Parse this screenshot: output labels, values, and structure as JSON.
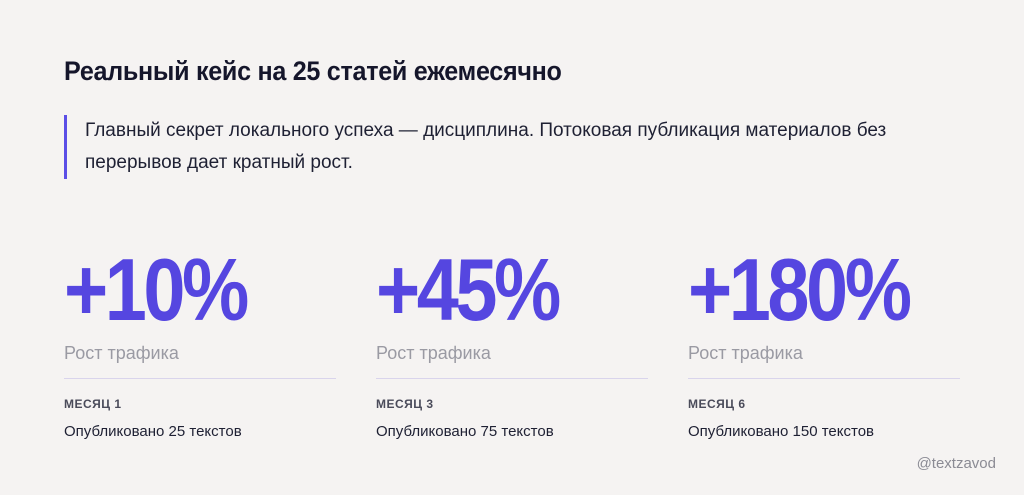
{
  "title": "Реальный кейс на 25 статей ежемесячно",
  "quote": {
    "line1": "Главный секрет локального успеха — дисциплина. Потоковая публикация материалов без",
    "line2": "перерывов дает кратный рост."
  },
  "stats": [
    {
      "value": "+10%",
      "label": "Рост трафика",
      "month": "МЕСЯЦ 1",
      "published": "Опубликовано 25 текстов"
    },
    {
      "value": "+45%",
      "label": "Рост трафика",
      "month": "МЕСЯЦ 3",
      "published": "Опубликовано 75 текстов"
    },
    {
      "value": "+180%",
      "label": "Рост трафика",
      "month": "МЕСЯЦ 6",
      "published": "Опубликовано 150 текстов"
    }
  ],
  "watermark": "@textzavod",
  "colors": {
    "accent": "#5546e0",
    "background": "#f5f3f2",
    "text": "#15162b"
  }
}
